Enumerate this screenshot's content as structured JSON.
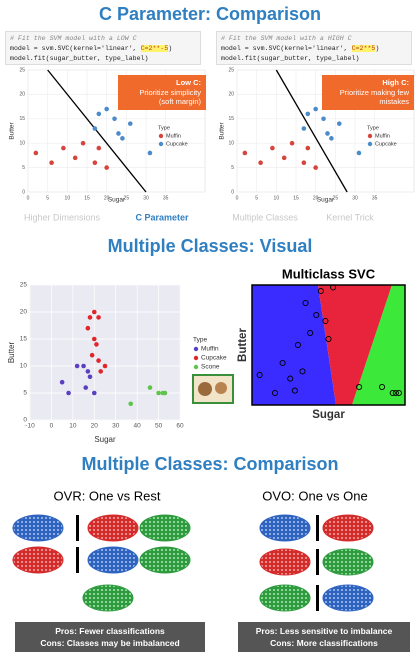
{
  "c_parameter": {
    "title": "C Parameter: Comparison",
    "code_low": {
      "comment": "# Fit the SVM model with a LOW C",
      "call": "model = svm.SVC(kernel='linear', ",
      "param": "C=2**-5",
      "close": ")",
      "fit": "model.fit(sugar_butter, type_label)"
    },
    "code_high": {
      "comment": "# Fit the SVM model with a HIGH C",
      "call": "model = svm.SVC(kernel='linear', ",
      "param": "C=2**5",
      "close": ")",
      "fit": "model.fit(sugar_butter, type_label)"
    },
    "note_low": {
      "heading": "Low C:",
      "lines": [
        "Prioritize simplicity",
        "(soft margin)"
      ]
    },
    "note_high": {
      "heading": "High C:",
      "lines": [
        "Prioritize making few",
        "mistakes"
      ]
    }
  },
  "nav": {
    "items": [
      "Higher Dimensions",
      "C Parameter",
      "Multiple Classes",
      "Kernel Trick"
    ],
    "active": 1
  },
  "visual": {
    "title": "Multiple Classes: Visual"
  },
  "comparison": {
    "title": "Multiple Classes: Comparison",
    "ovr": {
      "title": "OVR: One vs Rest",
      "pros": "Pros: Fewer classifications",
      "cons": "Cons: Classes may be imbalanced"
    },
    "ovo": {
      "title": "OVO: One vs One",
      "pros": "Pros: Less sensitive to imbalance",
      "cons": "Cons: More classifications"
    }
  },
  "chart_data": [
    {
      "type": "scatter",
      "x_label": "Sugar",
      "y_label": "Butter",
      "xlim": [
        0,
        45
      ],
      "ylim": [
        0,
        25
      ],
      "xticks": [
        0,
        5,
        10,
        15,
        20,
        25,
        30,
        35
      ],
      "yticks": [
        0,
        5,
        10,
        15,
        20,
        25
      ],
      "grid": true,
      "facecolor": "#ffffff",
      "legend_title": "Type",
      "series": [
        {
          "name": "Muffin",
          "color": "#d6453d",
          "x": [
            2,
            6,
            9,
            12,
            14,
            17,
            18,
            20
          ],
          "y": [
            8,
            6,
            9,
            7,
            10,
            6,
            9,
            5
          ]
        },
        {
          "name": "Cupcake",
          "color": "#4c8bc9",
          "x": [
            17,
            18,
            20,
            22,
            23,
            24,
            26,
            25,
            31
          ],
          "y": [
            13,
            16,
            17,
            15,
            12,
            11,
            14,
            19,
            8
          ]
        }
      ],
      "boundary": {
        "x": [
          5,
          30
        ],
        "y": [
          25,
          0
        ],
        "color": "#000000"
      }
    },
    {
      "type": "scatter",
      "x_label": "Sugar",
      "y_label": "Butter",
      "xlim": [
        0,
        45
      ],
      "ylim": [
        0,
        25
      ],
      "xticks": [
        0,
        5,
        10,
        15,
        20,
        25,
        30,
        35
      ],
      "yticks": [
        0,
        5,
        10,
        15,
        20,
        25
      ],
      "grid": true,
      "facecolor": "#ffffff",
      "legend_title": "Type",
      "series": [
        {
          "name": "Muffin",
          "color": "#d6453d",
          "x": [
            2,
            6,
            9,
            12,
            14,
            17,
            18,
            20
          ],
          "y": [
            8,
            6,
            9,
            7,
            10,
            6,
            9,
            5
          ]
        },
        {
          "name": "Cupcake",
          "color": "#4c8bc9",
          "x": [
            17,
            18,
            20,
            22,
            23,
            24,
            26,
            25,
            31
          ],
          "y": [
            13,
            16,
            17,
            15,
            12,
            11,
            14,
            19,
            8
          ]
        }
      ],
      "boundary": {
        "x": [
          10,
          28
        ],
        "y": [
          25,
          0
        ],
        "color": "#000000"
      }
    },
    {
      "type": "scatter",
      "x_label": "Sugar",
      "y_label": "Butter",
      "xlim": [
        -10,
        60
      ],
      "ylim": [
        0,
        25
      ],
      "xticks": [
        -10,
        0,
        10,
        20,
        30,
        40,
        50,
        60
      ],
      "yticks": [
        0,
        5,
        10,
        15,
        20,
        25
      ],
      "grid": true,
      "facecolor": "#eaeaf2",
      "legend_title": "Type",
      "series": [
        {
          "name": "Muffin",
          "color": "#5a3fc0",
          "x": [
            5,
            8,
            12,
            15,
            16,
            17,
            18,
            20
          ],
          "y": [
            7,
            5,
            10,
            10,
            6,
            9,
            8,
            5
          ]
        },
        {
          "name": "Cupcake",
          "color": "#e0262b",
          "x": [
            17,
            18,
            20,
            22,
            20,
            21,
            19,
            22,
            23,
            25
          ],
          "y": [
            17,
            19,
            20,
            19,
            15,
            14,
            12,
            11,
            9,
            10
          ]
        },
        {
          "name": "Scone",
          "color": "#5ec44b",
          "x": [
            37,
            46,
            50,
            52,
            53
          ],
          "y": [
            3,
            6,
            5,
            5,
            5
          ]
        }
      ]
    },
    {
      "type": "scatter",
      "title": "Multiclass SVC",
      "x_label": "Sugar",
      "y_label": "Butter",
      "xlim": [
        0,
        10
      ],
      "ylim": [
        0,
        10
      ],
      "marker": "open",
      "series": [
        {
          "color": "#000000",
          "x": [
            0.5,
            1.5,
            2,
            2.5,
            3,
            3.3,
            2.8,
            3.5,
            3.8,
            4.2,
            4.5,
            4.8,
            5,
            5.3,
            7,
            8.5,
            9.2,
            9.4,
            9.6
          ],
          "y": [
            2.5,
            1,
            3.5,
            2.2,
            5,
            2.8,
            1.2,
            8.5,
            6,
            7.5,
            9.5,
            7,
            5.5,
            9.8,
            1.5,
            1.5,
            1,
            1,
            1
          ]
        }
      ]
    }
  ]
}
